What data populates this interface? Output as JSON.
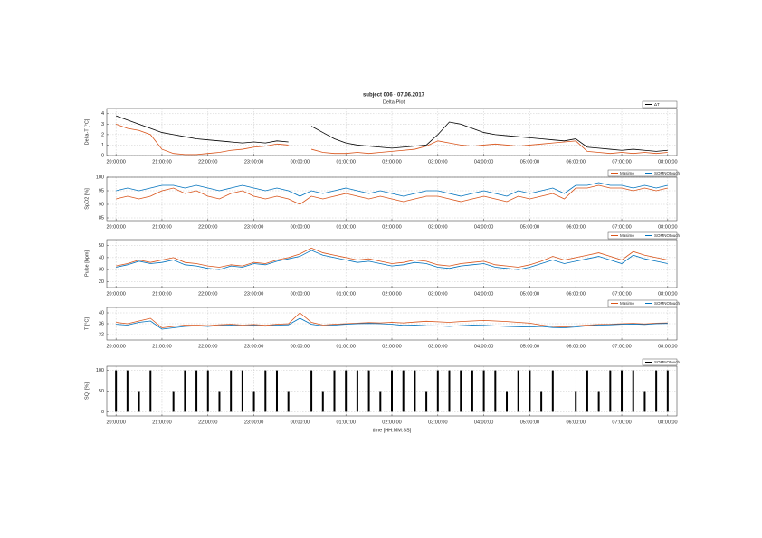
{
  "chart_data": [
    {
      "type": "line",
      "title": "subject 006 - 07.06.2017",
      "subtitle": "Delta-Plot",
      "ylabel": "Delta-T [°C]",
      "x": [
        0,
        0.25,
        0.5,
        0.75,
        1,
        1.25,
        1.5,
        1.75,
        2,
        2.25,
        2.5,
        2.75,
        3,
        3.25,
        3.5,
        3.75,
        4,
        4.25,
        4.5,
        4.75,
        5,
        5.25,
        5.5,
        5.75,
        6,
        6.25,
        6.5,
        6.75,
        7,
        7.25,
        7.5,
        7.75,
        8,
        8.25,
        8.5,
        8.75,
        9,
        9.25,
        9.5,
        9.75,
        10,
        10.25,
        10.5,
        10.75,
        11,
        11.25,
        11.5,
        11.75,
        12
      ],
      "xlim": [
        -0.2,
        12.2
      ],
      "xticks": [
        {
          "value": 0,
          "label": "20:00:00"
        },
        {
          "value": 1,
          "label": "21:00:00"
        },
        {
          "value": 2,
          "label": "22:00:00"
        },
        {
          "value": 3,
          "label": "23:00:00"
        },
        {
          "value": 4,
          "label": "00:00:00"
        },
        {
          "value": 5,
          "label": "01:00:00"
        },
        {
          "value": 6,
          "label": "02:00:00"
        },
        {
          "value": 7,
          "label": "03:00:00"
        },
        {
          "value": 8,
          "label": "04:00:00"
        },
        {
          "value": 9,
          "label": "05:00:00"
        },
        {
          "value": 10,
          "label": "06:00:00"
        },
        {
          "value": 11,
          "label": "07:00:00"
        },
        {
          "value": 12,
          "label": "08:00:00"
        }
      ],
      "ylim": [
        0,
        4.5
      ],
      "yticks": [
        0,
        1,
        2,
        3,
        4
      ],
      "grid": true,
      "series": [
        {
          "name": "ΔT",
          "color": "#000000",
          "values": [
            3.8,
            3.4,
            3.0,
            2.6,
            2.2,
            2.0,
            1.8,
            1.6,
            1.5,
            1.4,
            1.3,
            1.2,
            1.3,
            1.2,
            1.4,
            1.3,
            null,
            2.8,
            2.2,
            1.6,
            1.2,
            1.0,
            0.9,
            0.8,
            0.7,
            0.8,
            0.9,
            1.0,
            2.0,
            3.2,
            3.0,
            2.6,
            2.2,
            2.0,
            1.9,
            1.8,
            1.7,
            1.6,
            1.5,
            1.4,
            1.6,
            0.8,
            0.7,
            0.6,
            0.5,
            0.6,
            0.5,
            0.4,
            0.5
          ]
        },
        {
          "color": "#d95319",
          "values": [
            3.0,
            2.6,
            2.4,
            2.0,
            0.6,
            0.2,
            0.1,
            0.1,
            0.2,
            0.3,
            0.5,
            0.6,
            0.8,
            0.9,
            1.1,
            1.0,
            null,
            0.6,
            0.3,
            0.2,
            0.2,
            0.3,
            0.2,
            0.3,
            0.4,
            0.5,
            0.6,
            0.9,
            1.4,
            1.2,
            1.0,
            0.9,
            1.0,
            1.1,
            1.0,
            0.9,
            1.0,
            1.1,
            1.2,
            1.3,
            1.4,
            0.4,
            0.3,
            0.2,
            0.3,
            0.2,
            0.3,
            0.2,
            0.3
          ]
        }
      ]
    },
    {
      "type": "line",
      "ylabel": "SpO2 [%]",
      "x": [
        0,
        0.25,
        0.5,
        0.75,
        1,
        1.25,
        1.5,
        1.75,
        2,
        2.25,
        2.5,
        2.75,
        3,
        3.25,
        3.5,
        3.75,
        4,
        4.25,
        4.5,
        4.75,
        5,
        5.25,
        5.5,
        5.75,
        6,
        6.25,
        6.5,
        6.75,
        7,
        7.25,
        7.5,
        7.75,
        8,
        8.25,
        8.5,
        8.75,
        9,
        9.25,
        9.5,
        9.75,
        10,
        10.25,
        10.5,
        10.75,
        11,
        11.25,
        11.5,
        11.75,
        12
      ],
      "xlim": [
        -0.2,
        12.2
      ],
      "xticks": [
        {
          "value": 0,
          "label": "20:00:00"
        },
        {
          "value": 1,
          "label": "21:00:00"
        },
        {
          "value": 2,
          "label": "22:00:00"
        },
        {
          "value": 3,
          "label": "23:00:00"
        },
        {
          "value": 4,
          "label": "00:00:00"
        },
        {
          "value": 5,
          "label": "01:00:00"
        },
        {
          "value": 6,
          "label": "02:00:00"
        },
        {
          "value": 7,
          "label": "03:00:00"
        },
        {
          "value": 8,
          "label": "04:00:00"
        },
        {
          "value": 9,
          "label": "05:00:00"
        },
        {
          "value": 10,
          "label": "06:00:00"
        },
        {
          "value": 11,
          "label": "07:00:00"
        },
        {
          "value": 12,
          "label": "08:00:00"
        }
      ],
      "ylim": [
        84,
        100
      ],
      "yticks": [
        85,
        90,
        95,
        100
      ],
      "grid": true,
      "series": [
        {
          "name": "Masimo",
          "color": "#d95319",
          "values": [
            92,
            93,
            92,
            93,
            95,
            96,
            94,
            95,
            93,
            92,
            94,
            95,
            93,
            92,
            93,
            92,
            90,
            93,
            92,
            93,
            94,
            93,
            92,
            93,
            92,
            91,
            92,
            93,
            93,
            92,
            91,
            92,
            93,
            92,
            91,
            93,
            92,
            93,
            94,
            92,
            96,
            96,
            97,
            96,
            96,
            95,
            96,
            95,
            96
          ]
        },
        {
          "name": "SOMNOtouch",
          "color": "#0072bd",
          "values": [
            95,
            96,
            95,
            96,
            97,
            97,
            96,
            97,
            96,
            95,
            96,
            97,
            96,
            95,
            96,
            95,
            93,
            95,
            94,
            95,
            96,
            95,
            94,
            95,
            94,
            93,
            94,
            95,
            95,
            94,
            93,
            94,
            95,
            94,
            93,
            95,
            94,
            95,
            96,
            94,
            97,
            97,
            98,
            97,
            97,
            96,
            97,
            96,
            97
          ]
        }
      ]
    },
    {
      "type": "line",
      "ylabel": "Pulse [bpm]",
      "x": [
        0,
        0.25,
        0.5,
        0.75,
        1,
        1.25,
        1.5,
        1.75,
        2,
        2.25,
        2.5,
        2.75,
        3,
        3.25,
        3.5,
        3.75,
        4,
        4.25,
        4.5,
        4.75,
        5,
        5.25,
        5.5,
        5.75,
        6,
        6.25,
        6.5,
        6.75,
        7,
        7.25,
        7.5,
        7.75,
        8,
        8.25,
        8.5,
        8.75,
        9,
        9.25,
        9.5,
        9.75,
        10,
        10.25,
        10.5,
        10.75,
        11,
        11.25,
        11.5,
        11.75,
        12
      ],
      "xlim": [
        -0.2,
        12.2
      ],
      "xticks": [
        {
          "value": 0,
          "label": "20:00:00"
        },
        {
          "value": 1,
          "label": "21:00:00"
        },
        {
          "value": 2,
          "label": "22:00:00"
        },
        {
          "value": 3,
          "label": "23:00:00"
        },
        {
          "value": 4,
          "label": "00:00:00"
        },
        {
          "value": 5,
          "label": "01:00:00"
        },
        {
          "value": 6,
          "label": "02:00:00"
        },
        {
          "value": 7,
          "label": "03:00:00"
        },
        {
          "value": 8,
          "label": "04:00:00"
        },
        {
          "value": 9,
          "label": "05:00:00"
        },
        {
          "value": 10,
          "label": "06:00:00"
        },
        {
          "value": 11,
          "label": "07:00:00"
        },
        {
          "value": 12,
          "label": "08:00:00"
        }
      ],
      "ylim": [
        15,
        55
      ],
      "yticks": [
        20,
        30,
        40,
        50
      ],
      "grid": true,
      "series": [
        {
          "name": "Masimo",
          "color": "#d95319",
          "values": [
            33,
            35,
            38,
            36,
            38,
            40,
            36,
            35,
            33,
            32,
            34,
            33,
            36,
            35,
            38,
            40,
            43,
            48,
            44,
            42,
            40,
            38,
            39,
            37,
            35,
            36,
            38,
            37,
            34,
            33,
            35,
            36,
            37,
            34,
            33,
            32,
            34,
            37,
            41,
            38,
            40,
            42,
            44,
            41,
            38,
            45,
            42,
            40,
            38
          ]
        },
        {
          "name": "SOMNOtouch",
          "color": "#0072bd",
          "values": [
            32,
            34,
            37,
            35,
            36,
            38,
            34,
            33,
            31,
            30,
            33,
            32,
            35,
            34,
            37,
            39,
            41,
            46,
            42,
            40,
            38,
            36,
            37,
            35,
            33,
            34,
            36,
            35,
            32,
            31,
            33,
            34,
            35,
            32,
            31,
            30,
            32,
            35,
            38,
            35,
            37,
            39,
            41,
            38,
            35,
            42,
            39,
            37,
            35
          ]
        }
      ]
    },
    {
      "type": "line",
      "ylabel": "T [°C]",
      "x": [
        0,
        0.25,
        0.5,
        0.75,
        1,
        1.25,
        1.5,
        1.75,
        2,
        2.25,
        2.5,
        2.75,
        3,
        3.25,
        3.5,
        3.75,
        4,
        4.25,
        4.5,
        4.75,
        5,
        5.25,
        5.5,
        5.75,
        6,
        6.25,
        6.5,
        6.75,
        7,
        7.25,
        7.5,
        7.75,
        8,
        8.25,
        8.5,
        8.75,
        9,
        9.25,
        9.5,
        9.75,
        10,
        10.25,
        10.5,
        10.75,
        11,
        11.25,
        11.5,
        11.75,
        12
      ],
      "xlim": [
        -0.2,
        12.2
      ],
      "xticks": [
        {
          "value": 0,
          "label": "20:00:00"
        },
        {
          "value": 1,
          "label": "21:00:00"
        },
        {
          "value": 2,
          "label": "22:00:00"
        },
        {
          "value": 3,
          "label": "23:00:00"
        },
        {
          "value": 4,
          "label": "00:00:00"
        },
        {
          "value": 5,
          "label": "01:00:00"
        },
        {
          "value": 6,
          "label": "02:00:00"
        },
        {
          "value": 7,
          "label": "03:00:00"
        },
        {
          "value": 8,
          "label": "04:00:00"
        },
        {
          "value": 9,
          "label": "05:00:00"
        },
        {
          "value": 10,
          "label": "06:00:00"
        },
        {
          "value": 11,
          "label": "07:00:00"
        },
        {
          "value": 12,
          "label": "08:00:00"
        }
      ],
      "ylim": [
        30,
        42
      ],
      "yticks": [
        32,
        36,
        40
      ],
      "grid": true,
      "series": [
        {
          "name": "Masimo",
          "color": "#d95319",
          "values": [
            36.5,
            36,
            37,
            38,
            34.5,
            35,
            35.5,
            35.5,
            35.3,
            35.6,
            35.8,
            35.5,
            35.7,
            35.4,
            35.8,
            36,
            40,
            36.5,
            35.5,
            35.8,
            36,
            36.2,
            36.4,
            36.3,
            36.5,
            36.3,
            36.6,
            36.9,
            36.7,
            36.5,
            36.8,
            37,
            37.2,
            37,
            36.8,
            36.5,
            36.2,
            35.5,
            35,
            34.8,
            35.2,
            35.5,
            35.7,
            35.8,
            36,
            36.1,
            35.9,
            36.2,
            36.3
          ]
        },
        {
          "name": "SOMNOtouch",
          "color": "#0072bd",
          "values": [
            35.8,
            35.5,
            36.5,
            37,
            34,
            34.5,
            35,
            35.2,
            35,
            35.3,
            35.5,
            35.2,
            35.4,
            35.1,
            35.5,
            35.6,
            38,
            35.8,
            35.2,
            35.5,
            35.8,
            36,
            36.1,
            36,
            35.8,
            35.4,
            35.5,
            35.3,
            35.2,
            35,
            35.3,
            35.5,
            35.4,
            35.2,
            35,
            34.9,
            34.8,
            35,
            34.6,
            34.5,
            34.8,
            35.2,
            35.5,
            35.6,
            35.8,
            35.9,
            35.7,
            36,
            36.1
          ]
        }
      ]
    },
    {
      "type": "bar",
      "ylabel": "SQI [%]",
      "xlabel": "time [HH:MM:SS]",
      "x": [
        0,
        0.25,
        0.5,
        0.75,
        1,
        1.25,
        1.5,
        1.75,
        2,
        2.25,
        2.5,
        2.75,
        3,
        3.25,
        3.5,
        3.75,
        4,
        4.25,
        4.5,
        4.75,
        5,
        5.25,
        5.5,
        5.75,
        6,
        6.25,
        6.5,
        6.75,
        7,
        7.25,
        7.5,
        7.75,
        8,
        8.25,
        8.5,
        8.75,
        9,
        9.25,
        9.5,
        9.75,
        10,
        10.25,
        10.5,
        10.75,
        11,
        11.25,
        11.5,
        11.75,
        12
      ],
      "xlim": [
        -0.2,
        12.2
      ],
      "xticks": [
        {
          "value": 0,
          "label": "20:00:00"
        },
        {
          "value": 1,
          "label": "21:00:00"
        },
        {
          "value": 2,
          "label": "22:00:00"
        },
        {
          "value": 3,
          "label": "23:00:00"
        },
        {
          "value": 4,
          "label": "00:00:00"
        },
        {
          "value": 5,
          "label": "01:00:00"
        },
        {
          "value": 6,
          "label": "02:00:00"
        },
        {
          "value": 7,
          "label": "03:00:00"
        },
        {
          "value": 8,
          "label": "04:00:00"
        },
        {
          "value": 9,
          "label": "05:00:00"
        },
        {
          "value": 10,
          "label": "06:00:00"
        },
        {
          "value": 11,
          "label": "07:00:00"
        },
        {
          "value": 12,
          "label": "08:00:00"
        }
      ],
      "ylim": [
        -10,
        110
      ],
      "yticks": [
        0,
        50,
        100
      ],
      "grid": true,
      "series": [
        {
          "name": "SOMNOtouch",
          "color": "#000000",
          "values": [
            100,
            100,
            50,
            100,
            0,
            50,
            100,
            100,
            100,
            50,
            100,
            100,
            50,
            100,
            100,
            50,
            0,
            100,
            50,
            100,
            100,
            100,
            100,
            50,
            100,
            100,
            100,
            50,
            100,
            100,
            100,
            100,
            100,
            100,
            50,
            100,
            100,
            50,
            100,
            0,
            50,
            100,
            50,
            100,
            100,
            100,
            50,
            100,
            100
          ]
        }
      ]
    }
  ]
}
